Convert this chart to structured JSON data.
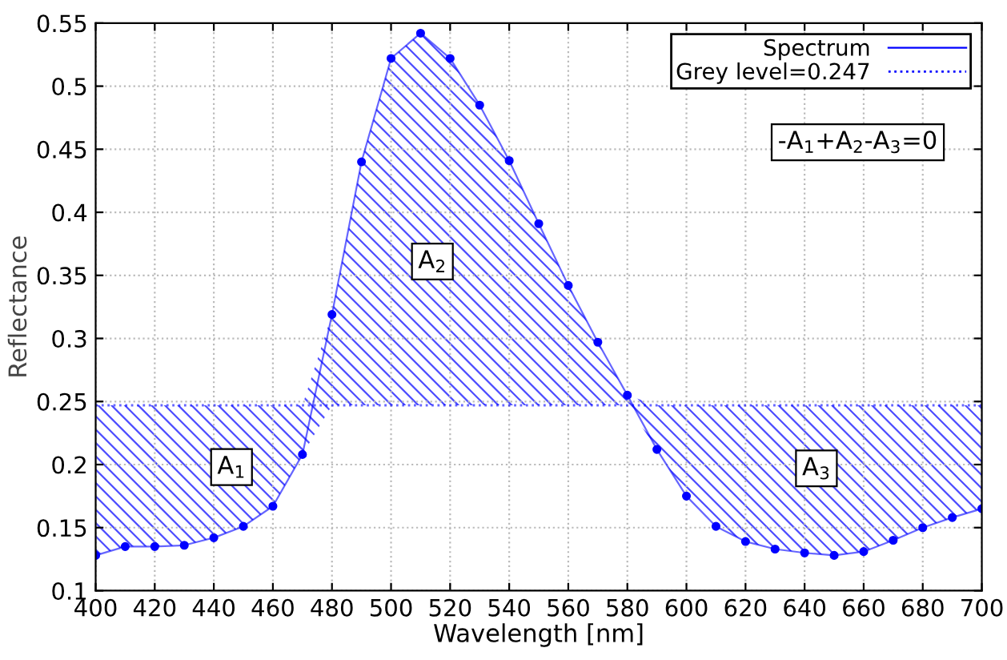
{
  "chart_data": {
    "type": "line",
    "xlabel": "Wavelength [nm]",
    "ylabel": "Reflectance",
    "x": [
      400,
      410,
      420,
      430,
      440,
      450,
      460,
      470,
      480,
      490,
      500,
      510,
      520,
      530,
      540,
      550,
      560,
      570,
      580,
      590,
      600,
      610,
      620,
      630,
      640,
      650,
      660,
      670,
      680,
      690,
      700
    ],
    "series": [
      {
        "name": "Spectrum",
        "color": "#0000ff",
        "marker": "circle",
        "line_style": "solid",
        "values": [
          0.128,
          0.135,
          0.135,
          0.136,
          0.142,
          0.151,
          0.167,
          0.208,
          0.319,
          0.44,
          0.522,
          0.542,
          0.522,
          0.485,
          0.441,
          0.391,
          0.342,
          0.297,
          0.255,
          0.212,
          0.175,
          0.151,
          0.139,
          0.133,
          0.13,
          0.128,
          0.131,
          0.14,
          0.15,
          0.158,
          0.165
        ],
        "lower": [
          0.128,
          0.135,
          0.135,
          0.136,
          0.142,
          0.151,
          0.167,
          0.208,
          0.247,
          0.247,
          0.247,
          0.247,
          0.247,
          0.247,
          0.247,
          0.247,
          0.247,
          0.247,
          0.247,
          0.212,
          0.175,
          0.151,
          0.139,
          0.133,
          0.13,
          0.128,
          0.131,
          0.14,
          0.15,
          0.158,
          0.165
        ],
        "upper": [
          0.247,
          0.247,
          0.247,
          0.247,
          0.247,
          0.247,
          0.247,
          0.247,
          0.319,
          0.44,
          0.522,
          0.542,
          0.522,
          0.485,
          0.441,
          0.391,
          0.342,
          0.297,
          0.255,
          0.247,
          0.247,
          0.247,
          0.247,
          0.247,
          0.247,
          0.247,
          0.247,
          0.247,
          0.247,
          0.247,
          0.247
        ]
      }
    ],
    "ref_lines": [
      {
        "axis": "y",
        "value": 0.247,
        "label": "Grey level=0.247",
        "color": "#0000ff",
        "line_style": "dotted"
      }
    ],
    "annotations": [
      {
        "text": "A$_{1}$",
        "x": 446,
        "y": 0.198
      },
      {
        "text": "A$_{2}$",
        "x": 514,
        "y": 0.361
      },
      {
        "text": "A$_{3}$",
        "x": 644,
        "y": 0.197
      },
      "-A$_{1}$+A$_{2}$-A$_{3}$=0"
    ],
    "xlim": [
      400,
      700
    ],
    "ylim": [
      0.1,
      0.55
    ],
    "xticks": [
      400,
      420,
      440,
      460,
      480,
      500,
      520,
      540,
      560,
      580,
      600,
      620,
      640,
      660,
      680,
      700
    ],
    "yticks": [
      0.1,
      0.15,
      0.2,
      0.25,
      0.3,
      0.35,
      0.4,
      0.45,
      0.5,
      0.55
    ],
    "grid": true,
    "legend": "top right"
  }
}
